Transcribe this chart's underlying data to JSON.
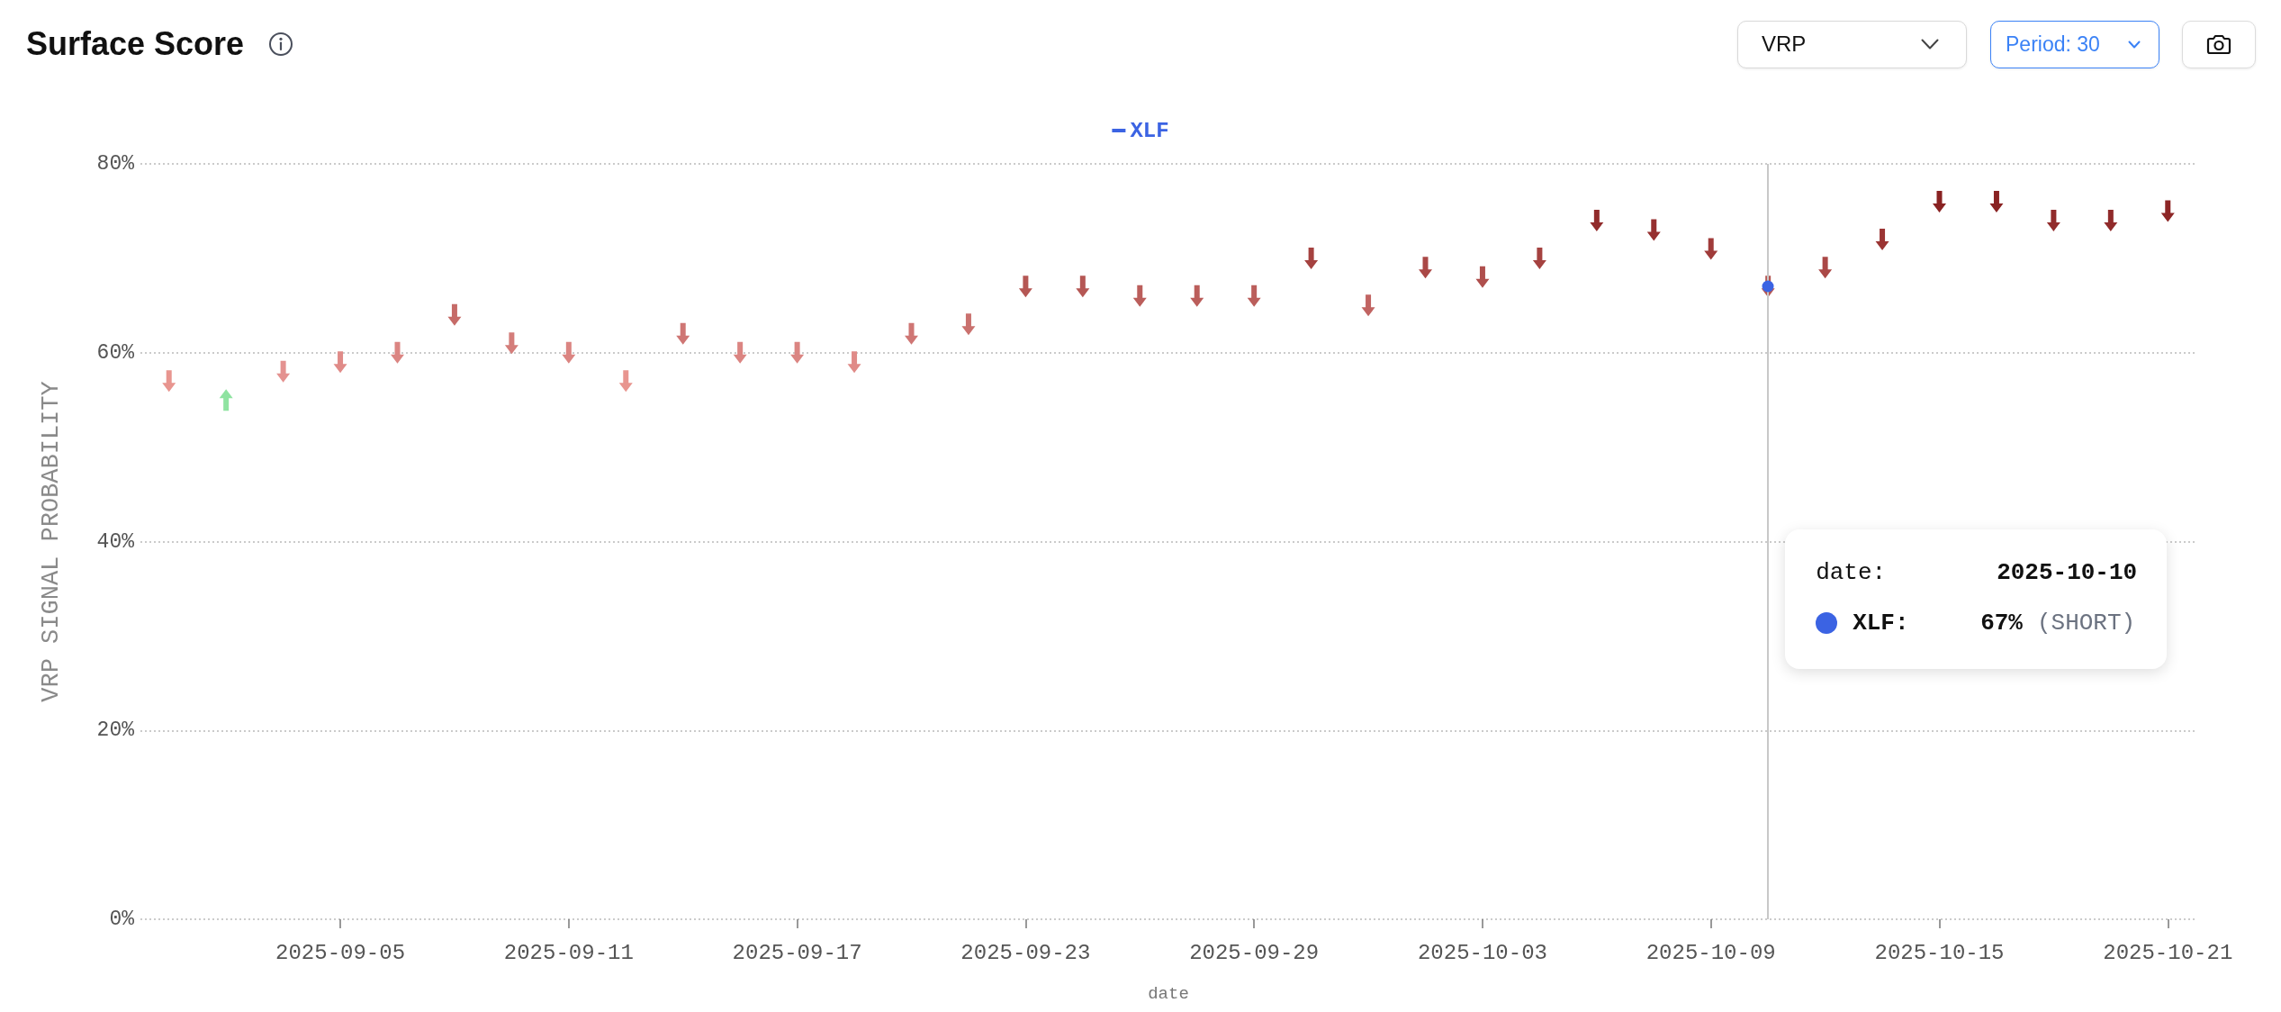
{
  "chart_data": {
    "type": "scatter",
    "title": "Surface Score",
    "xlabel": "date",
    "ylabel": "VRP SIGNAL PROBABILITY",
    "categories": [
      null,
      null,
      null,
      "2025-09-05",
      null,
      null,
      null,
      "2025-09-11",
      null,
      null,
      null,
      "2025-09-17",
      null,
      null,
      null,
      "2025-09-23",
      null,
      null,
      null,
      "2025-09-29",
      null,
      null,
      null,
      "2025-10-03",
      null,
      null,
      null,
      "2025-10-09",
      null,
      null,
      null,
      "2025-10-15",
      null,
      null,
      null,
      "2025-10-21"
    ],
    "series": [
      {
        "name": "XLF",
        "color": "#3b63e3",
        "values": [
          57,
          null,
          58,
          59,
          60,
          64,
          61,
          60,
          57,
          62,
          60,
          60,
          59,
          62,
          63,
          67,
          67,
          66,
          66,
          66,
          70,
          65,
          69,
          68,
          70,
          74,
          73,
          71,
          67,
          69,
          72,
          76,
          76,
          74,
          74,
          75
        ],
        "colors": [
          "#e8958f",
          null,
          "#e49290",
          "#e08b88",
          "#db8582",
          "#c66b68",
          "#d47d7a",
          "#db8582",
          "#e8958f",
          "#cf7674",
          "#db8582",
          "#db8582",
          "#e08b88",
          "#cf7674",
          "#ca716e",
          "#b55754",
          "#b55754",
          "#bb5e5b",
          "#bb5e5b",
          "#bb5e5b",
          "#a54240",
          "#c16462",
          "#aa4846",
          "#af4f4d",
          "#a54240",
          "#912b2b",
          "#963030",
          "#a03b3a",
          "#b55754",
          "#aa4846",
          "#9b3534",
          "#892222",
          "#892222",
          "#912b2b",
          "#912b2b",
          "#8d2626"
        ]
      },
      {
        "color": "#8fe3a1",
        "values": [
          null,
          55,
          null,
          null,
          null,
          null,
          null,
          null,
          null,
          null,
          null,
          null,
          null,
          null,
          null,
          null,
          null,
          null,
          null,
          null,
          null,
          null,
          null,
          null,
          null,
          null,
          null,
          null,
          null,
          null,
          null,
          null,
          null,
          null,
          null,
          null
        ]
      }
    ],
    "ylim": [
      0,
      80
    ],
    "yticks": [
      {
        "value": 0,
        "label": "0%"
      },
      {
        "value": 20,
        "label": "20%"
      },
      {
        "value": 40,
        "label": "40%"
      },
      {
        "value": 60,
        "label": "60%"
      },
      {
        "value": 80,
        "label": "80%"
      }
    ],
    "grid": "y",
    "legend": "top",
    "ref_lines": [
      {
        "axis": "x",
        "label": "2025-10-10",
        "color": "#c8c8c8"
      }
    ],
    "annotations": [
      "VRP",
      "Period: 30",
      "date:",
      "XLF:",
      "67%",
      "(SHORT)"
    ]
  }
}
